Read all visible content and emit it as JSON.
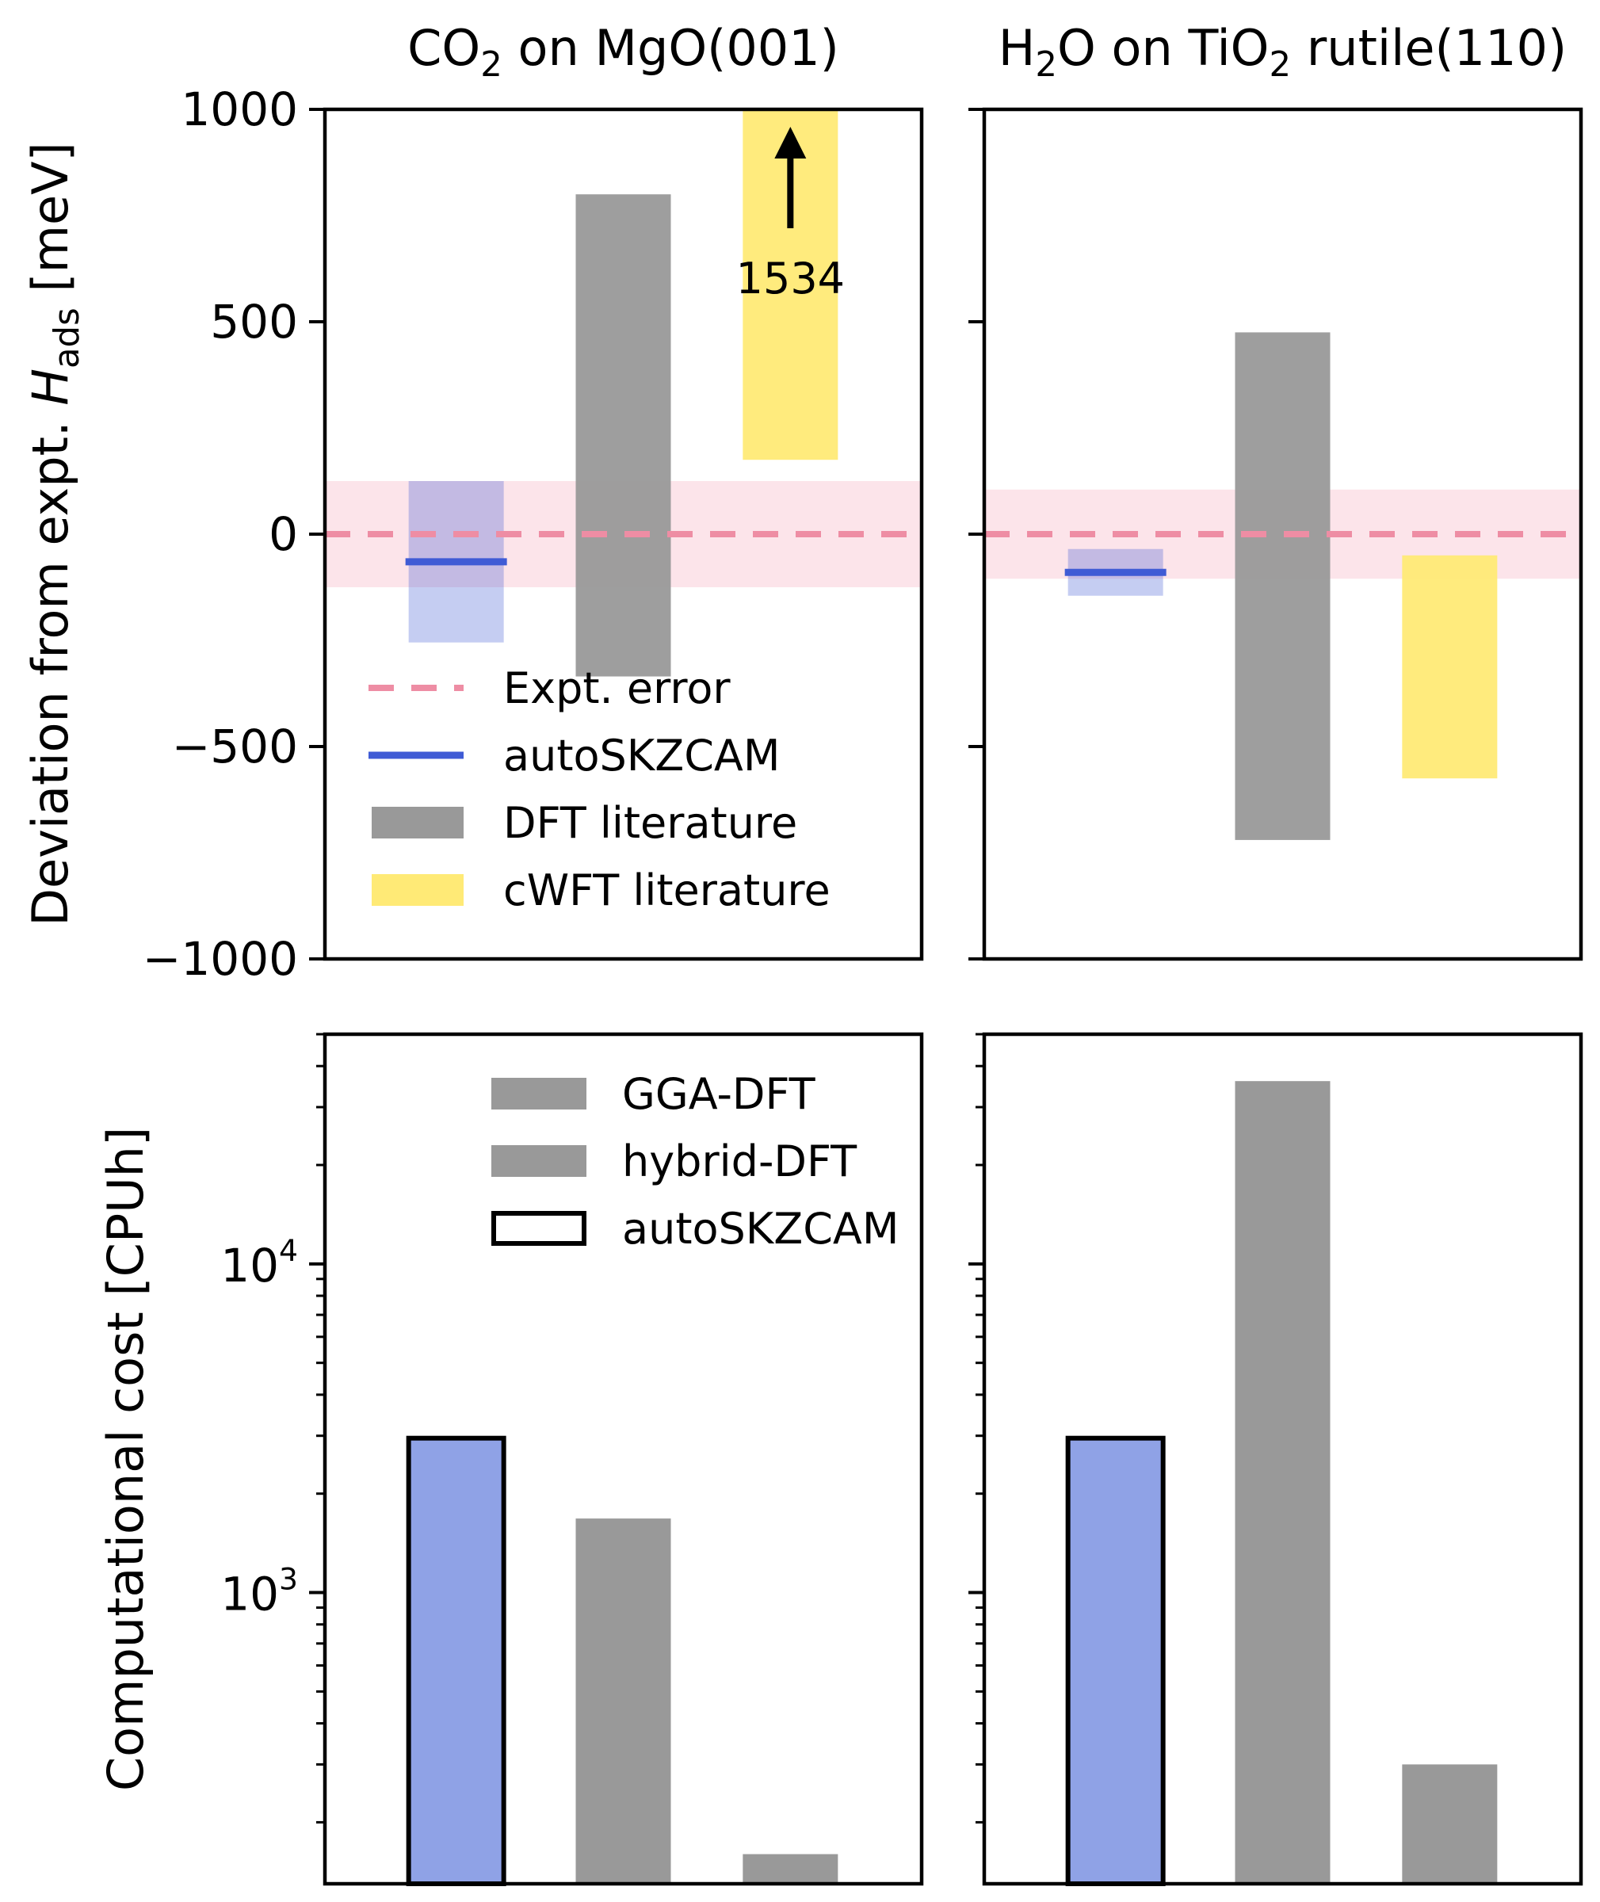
{
  "chart_data": [
    {
      "type": "bar",
      "panel": "top-left",
      "title": {
        "parts": [
          {
            "t": "CO"
          },
          {
            "t": "2",
            "sub": true
          },
          {
            "t": " on MgO(001)"
          }
        ]
      },
      "ylabel": {
        "parts": [
          {
            "t": "Deviation from expt. "
          },
          {
            "t": "H",
            "italic": true
          },
          {
            "t": "ads",
            "sub": true
          },
          {
            "t": " [meV]"
          }
        ]
      },
      "ylim": [
        -1000,
        1000
      ],
      "yscale": "linear",
      "yticks": [
        1000,
        500,
        0,
        -500,
        -1000
      ],
      "ytick_labels": [
        "1000",
        "500",
        "0",
        "−500",
        "−1000"
      ],
      "expt_error": [
        -125,
        125
      ],
      "bars": [
        {
          "series": "autoSKZCAM",
          "kind": "range",
          "low": -255,
          "high": 125,
          "mid": -65
        },
        {
          "series": "DFT literature",
          "kind": "range",
          "low": -335,
          "high": 800
        },
        {
          "series": "cWFT literature",
          "kind": "range",
          "low": 175,
          "high": 1000,
          "offscale_max": "1534"
        }
      ],
      "legend": {
        "placement": "lower-left",
        "entries": [
          {
            "label": "Expt. error",
            "style": "dash"
          },
          {
            "label": "autoSKZCAM",
            "style": "line"
          },
          {
            "label": "DFT literature",
            "style": "patch-gray"
          },
          {
            "label": "cWFT literature",
            "style": "patch-yellow"
          }
        ]
      }
    },
    {
      "type": "bar",
      "panel": "top-right",
      "title": {
        "parts": [
          {
            "t": "H"
          },
          {
            "t": "2",
            "sub": true
          },
          {
            "t": "O on TiO"
          },
          {
            "t": "2",
            "sub": true
          },
          {
            "t": " rutile(110)"
          }
        ]
      },
      "ylim": [
        -1000,
        1000
      ],
      "yscale": "linear",
      "expt_error": [
        -105,
        105
      ],
      "bars": [
        {
          "series": "autoSKZCAM",
          "kind": "range",
          "low": -145,
          "high": -35,
          "mid": -90
        },
        {
          "series": "DFT literature",
          "kind": "range",
          "low": -720,
          "high": 475
        },
        {
          "series": "cWFT literature",
          "kind": "range",
          "low": -575,
          "high": -50
        }
      ]
    },
    {
      "type": "bar",
      "panel": "bottom-left",
      "ylabel": {
        "parts": [
          {
            "t": "Computational cost [CPUh]"
          }
        ]
      },
      "yscale": "log",
      "ylim": [
        130,
        50000
      ],
      "yticks_major": [
        {
          "value": 1000,
          "base": "10",
          "exp": "3"
        },
        {
          "value": 10000,
          "base": "10",
          "exp": "4"
        }
      ],
      "bars": [
        {
          "series": "autoSKZCAM",
          "value": 2950
        },
        {
          "series": "hybrid-DFT",
          "value": 1680
        },
        {
          "series": "GGA-DFT",
          "value": 160
        }
      ],
      "legend": {
        "placement": "upper-right",
        "entries": [
          {
            "label": "GGA-DFT",
            "style": "patch-gray"
          },
          {
            "label": "hybrid-DFT",
            "style": "patch-gray"
          },
          {
            "label": "autoSKZCAM",
            "style": "patch-outline"
          }
        ]
      }
    },
    {
      "type": "bar",
      "panel": "bottom-right",
      "yscale": "log",
      "ylim": [
        130,
        50000
      ],
      "bars": [
        {
          "series": "autoSKZCAM",
          "value": 2950
        },
        {
          "series": "hybrid-DFT",
          "value": 36000
        },
        {
          "series": "GGA-DFT",
          "value": 300
        }
      ]
    }
  ],
  "colors": {
    "expt_error_line": "#ee8da4",
    "expt_error_band": "#fce4ea",
    "autoskzcam_line": "#3f5bd5",
    "autoskzcam_band": "#c7d2f4",
    "autoskzcam_bar": "#8fa2e6",
    "dft_gray": "#999999",
    "cwft_yellow": "#ffea76",
    "axis": "#000000"
  }
}
